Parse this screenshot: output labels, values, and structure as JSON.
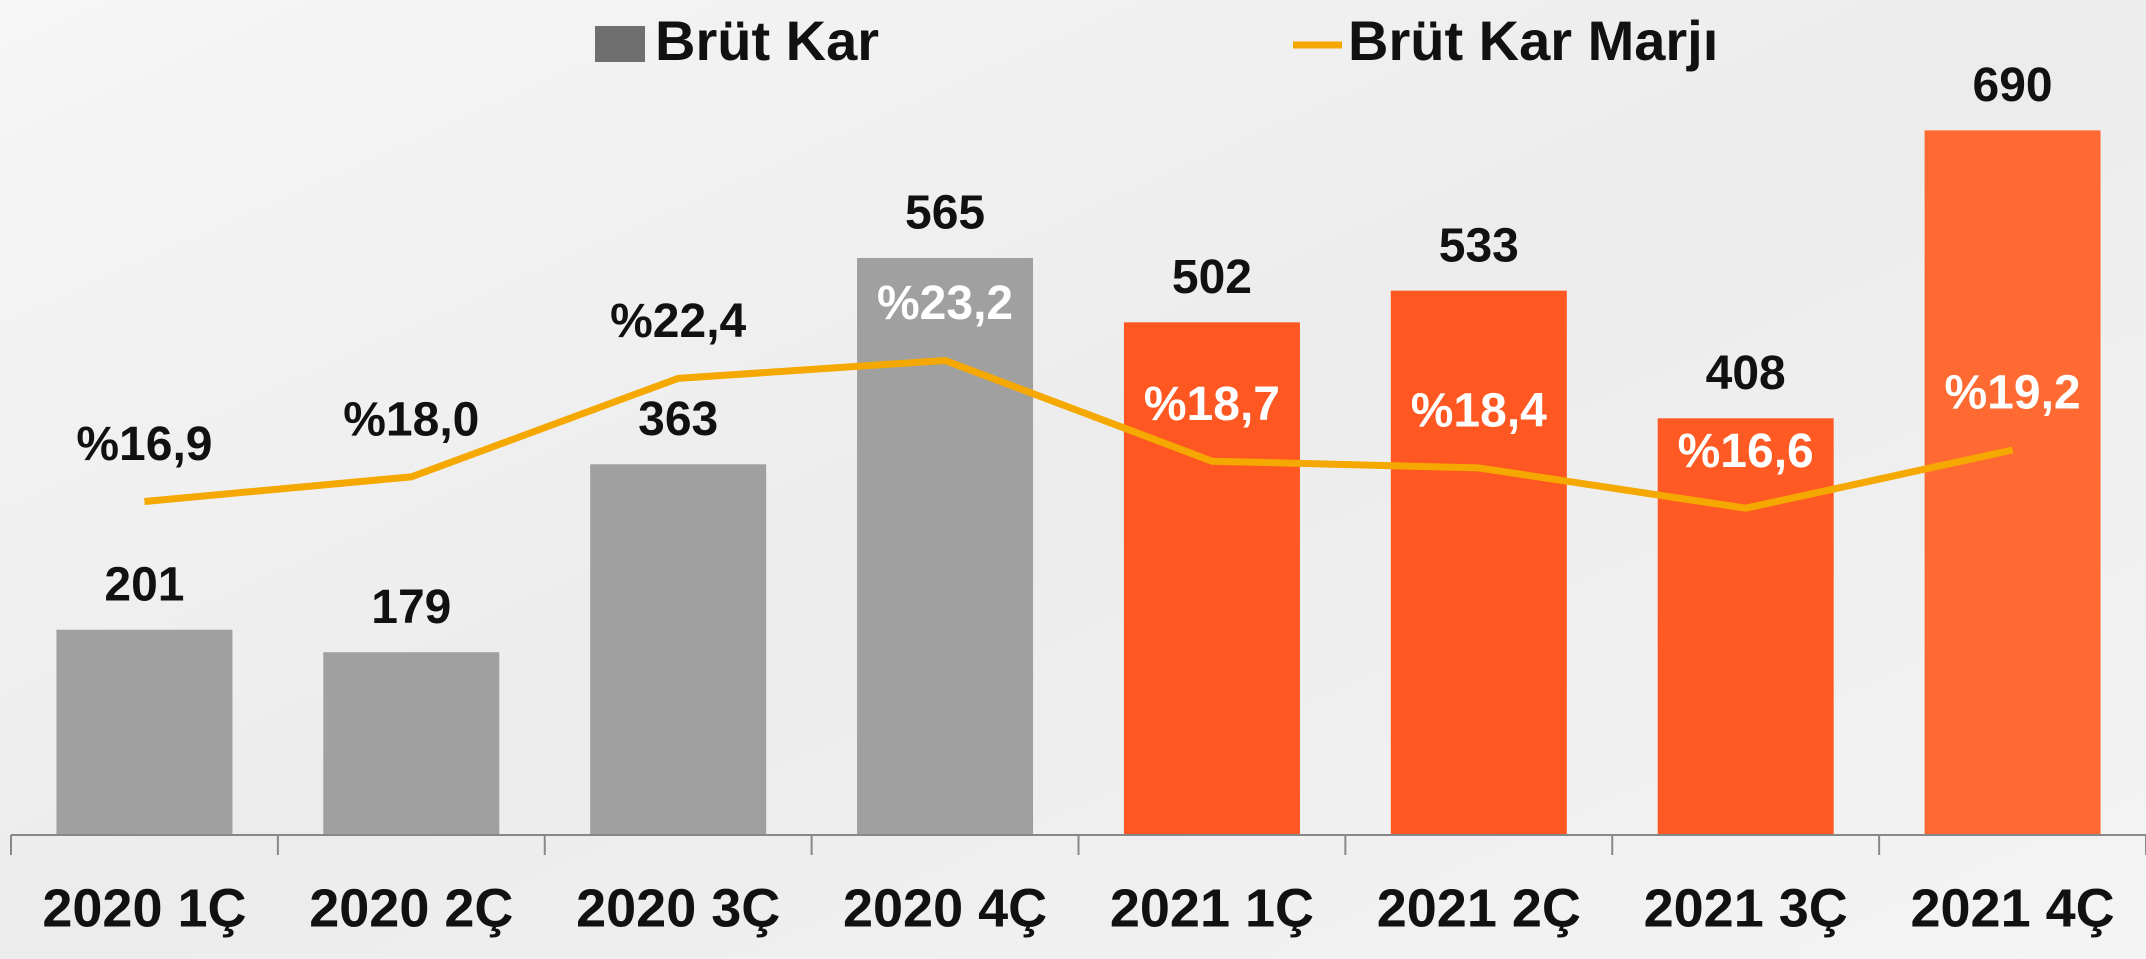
{
  "chart_data": {
    "type": "bar",
    "categories": [
      "2020 1Ç",
      "2020 2Ç",
      "2020 3Ç",
      "2020 4Ç",
      "2021 1Ç",
      "2021 2Ç",
      "2021 3Ç",
      "2021 4Ç"
    ],
    "series": [
      {
        "name": "Brüt Kar",
        "type": "bar",
        "color": "#6e6e6e",
        "colors": [
          "#a0a0a0",
          "#a0a0a0",
          "#a0a0a0",
          "#a0a0a0",
          "#ff5722",
          "#ff5722",
          "#ff5a24",
          "#ff6a33"
        ],
        "values": [
          201,
          179,
          363,
          565,
          502,
          533,
          408,
          690
        ]
      },
      {
        "name": "Brüt Kar Marjı",
        "type": "line",
        "color": "#f5a800",
        "axis": "y2",
        "values": [
          16.9,
          18.0,
          22.4,
          23.2,
          18.7,
          18.4,
          16.6,
          19.2
        ],
        "value_labels": [
          "%16,9",
          "%18,0",
          "%22,4",
          "%23,2",
          "%18,7",
          "%18,4",
          "%16,6",
          "%19,2"
        ]
      }
    ],
    "ylim": [
      0,
      800
    ],
    "y2lim": [
      2,
      38.5
    ],
    "legend": "top"
  }
}
